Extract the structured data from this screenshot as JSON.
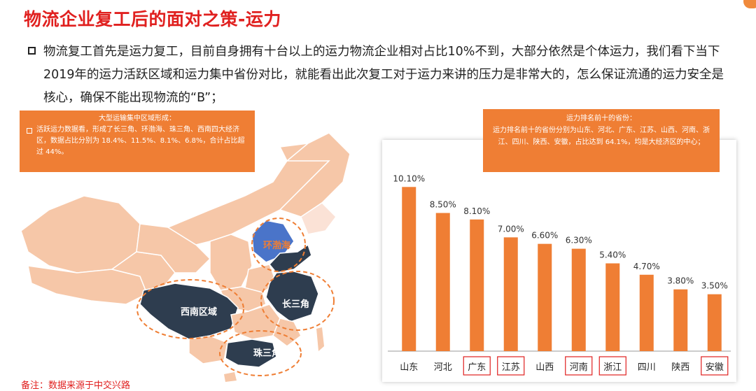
{
  "title": "物流企业复工后的面对之策-运力",
  "intro": "物流复工首先是运力复工，目前自身拥有十台以上的运力物流企业相对占比10%不到，大部分依然是个体运力，我们看下当下2019年的运力活跃区域和运力集中省份对比，就能看出此次复工对于运力来讲的压力是非常大的，怎么保证流通的运力安全是核心，确保不能出现物流的“B”；",
  "left_box": {
    "heading": "大型运输集中区域形成：",
    "body": "活跃运力数据看，形成了长三角、环渤海、珠三角、西南四大经济区，数据占比分别为 18.4%、11.5%、8.1%、6.8%，合计占比超过 44%。"
  },
  "map_labels": {
    "huanbohai": "环渤海",
    "xinan": "西南区域",
    "changsanjiao": "长三角",
    "zhusanjiao": "珠三角"
  },
  "right_box": {
    "heading": "运力排名前十的省份：",
    "body": "运力排名前十的省份分别为山东、河北、广东、江苏、山西、河南、浙江、四川、陕西、安徽，占比达到 64.1%，均是大经济区的中心；"
  },
  "footnote": "备注：数据来源于中交兴路",
  "colors": {
    "bar": "#ef7e34",
    "map_light": "#f6c7a8",
    "map_dark": "#2e3d4f",
    "map_blue": "#4a74c9",
    "highlight_border": "#e0201f"
  },
  "chart_data": {
    "type": "bar",
    "categories": [
      "山东",
      "河北",
      "广东",
      "江苏",
      "山西",
      "河南",
      "浙江",
      "四川",
      "陕西",
      "安徽"
    ],
    "values": [
      10.1,
      8.5,
      8.1,
      7.0,
      6.6,
      6.3,
      5.4,
      4.7,
      3.8,
      3.5
    ],
    "data_labels": [
      "10.10%",
      "8.50%",
      "8.10%",
      "7.00%",
      "6.60%",
      "6.30%",
      "5.40%",
      "4.70%",
      "3.80%",
      "3.50%"
    ],
    "highlighted": [
      "广东",
      "江苏",
      "河南",
      "浙江",
      "安徽"
    ],
    "ylim": [
      0,
      10.5
    ],
    "grid": false,
    "legend": "none"
  }
}
